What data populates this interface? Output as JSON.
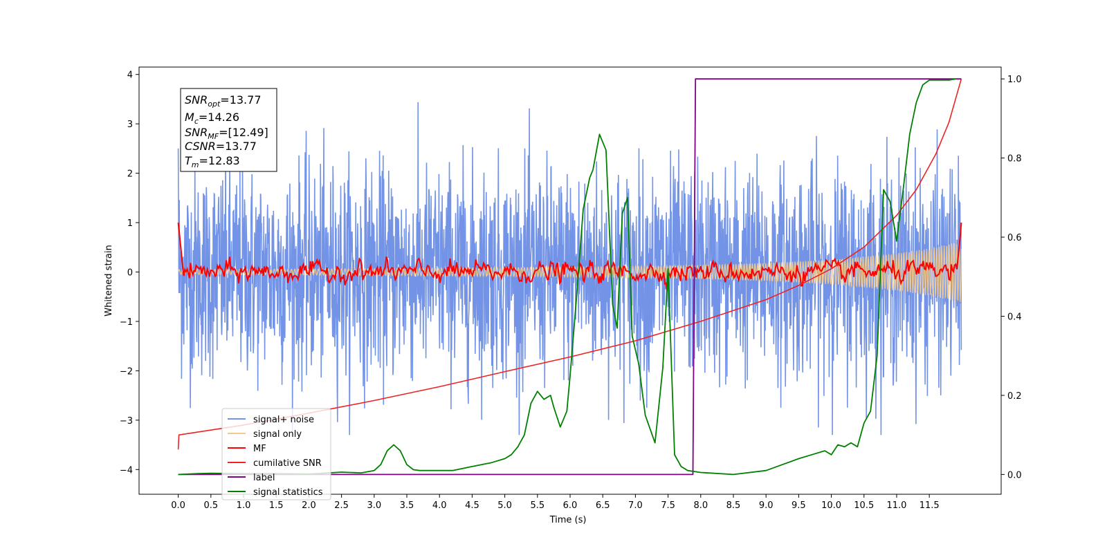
{
  "chart_data": {
    "type": "line",
    "xlabel": "Time (s)",
    "ylabel": "Whitened strain",
    "xlim": [
      -0.6,
      12.6
    ],
    "ylim": [
      -4.5,
      4.15
    ],
    "y2lim": [
      -0.05,
      1.03
    ],
    "x_ticks": [
      "0.0",
      "0.5",
      "1.0",
      "1.5",
      "2.0",
      "2.5",
      "3.0",
      "3.5",
      "4.0",
      "4.5",
      "5.0",
      "5.5",
      "6.0",
      "6.5",
      "7.0",
      "7.5",
      "8.0",
      "8.5",
      "9.0",
      "9.5",
      "10.0",
      "10.5",
      "11.0",
      "11.5"
    ],
    "x_tick_values": [
      0,
      0.5,
      1,
      1.5,
      2,
      2.5,
      3,
      3.5,
      4,
      4.5,
      5,
      5.5,
      6,
      6.5,
      7,
      7.5,
      8,
      8.5,
      9,
      9.5,
      10,
      10.5,
      11,
      11.5
    ],
    "y_ticks": [
      "4",
      "3",
      "2",
      "1",
      "0",
      "−1",
      "−2",
      "−3",
      "−4"
    ],
    "y_tick_values": [
      4,
      3,
      2,
      1,
      0,
      -1,
      -2,
      -3,
      -4
    ],
    "y2_ticks": [
      "1.0",
      "0.8",
      "0.6",
      "0.4",
      "0.2",
      "0.0"
    ],
    "y2_tick_values": [
      1.0,
      0.8,
      0.6,
      0.4,
      0.2,
      0.0
    ],
    "annotation": {
      "snr_opt": "=13.77",
      "mc": "=14.26",
      "snr_mf": "=[12.49]",
      "csnr": "=13.77",
      "tm": "=12.83"
    },
    "legend": {
      "placement": "lower-left",
      "entries": [
        "signal+ noise",
        "signal only",
        "MF",
        "cumilative SNR",
        "label",
        "signal statistics"
      ]
    },
    "colors": {
      "signal_noise": "#7393e6",
      "signal_only": "#f2c98c",
      "mf": "#ff0000",
      "cumulative_snr": "#ee2222",
      "label": "#800080",
      "signal_statistics": "#008000"
    },
    "series": [
      {
        "name": "signal+ noise",
        "axis": "left",
        "description_values": "dense whitened noise, approx range -3.3 to 3.8",
        "x_range": [
          0,
          11.99
        ]
      },
      {
        "name": "signal only",
        "axis": "left",
        "x_range": [
          0,
          11.99
        ],
        "envelope": {
          "x": [
            0,
            2,
            4,
            6,
            8,
            9,
            10,
            11,
            11.5,
            11.99
          ],
          "amp": [
            0.05,
            0.06,
            0.08,
            0.1,
            0.14,
            0.18,
            0.25,
            0.38,
            0.48,
            0.62
          ]
        }
      },
      {
        "name": "MF",
        "axis": "left",
        "x_range": [
          0,
          11.99
        ],
        "start_value": 1.0,
        "end_value": 1.0
      },
      {
        "name": "cumilative SNR",
        "axis": "right",
        "x": [
          0,
          0.01,
          1,
          2,
          3,
          4,
          5,
          6,
          7,
          8,
          9,
          9.5,
          10,
          10.5,
          11,
          11.3,
          11.6,
          11.8,
          11.99
        ],
        "values": [
          0.063,
          0.1,
          0.125,
          0.155,
          0.187,
          0.222,
          0.26,
          0.297,
          0.338,
          0.387,
          0.442,
          0.478,
          0.52,
          0.575,
          0.655,
          0.72,
          0.81,
          0.89,
          1.0
        ]
      },
      {
        "name": "label",
        "axis": "right",
        "x": [
          0,
          7.88,
          7.92,
          11.99
        ],
        "values": [
          0,
          0,
          1,
          1
        ]
      },
      {
        "name": "signal statistics",
        "axis": "right",
        "x": [
          0,
          0.3,
          0.5,
          1.0,
          1.5,
          2.0,
          2.5,
          2.8,
          3.0,
          3.1,
          3.2,
          3.3,
          3.4,
          3.5,
          3.6,
          3.7,
          4.0,
          4.2,
          4.5,
          4.8,
          5.0,
          5.1,
          5.2,
          5.3,
          5.4,
          5.5,
          5.6,
          5.7,
          5.75,
          5.85,
          5.95,
          6.0,
          6.1,
          6.2,
          6.3,
          6.35,
          6.45,
          6.55,
          6.65,
          6.72,
          6.8,
          6.88,
          6.95,
          7.05,
          7.15,
          7.3,
          7.42,
          7.5,
          7.6,
          7.7,
          7.8,
          8.0,
          8.5,
          9.0,
          9.5,
          9.7,
          9.9,
          10.0,
          10.1,
          10.2,
          10.3,
          10.4,
          10.5,
          10.6,
          10.7,
          10.8,
          10.9,
          11.0,
          11.1,
          11.2,
          11.3,
          11.4,
          11.5,
          11.6,
          11.7,
          11.8,
          11.9
        ],
        "values": [
          0.0,
          0.002,
          0.003,
          0.002,
          0.002,
          0.001,
          0.006,
          0.004,
          0.01,
          0.025,
          0.06,
          0.075,
          0.06,
          0.025,
          0.012,
          0.01,
          0.01,
          0.01,
          0.02,
          0.03,
          0.04,
          0.05,
          0.07,
          0.1,
          0.18,
          0.21,
          0.19,
          0.2,
          0.17,
          0.12,
          0.16,
          0.25,
          0.45,
          0.67,
          0.75,
          0.77,
          0.86,
          0.82,
          0.43,
          0.37,
          0.66,
          0.7,
          0.35,
          0.28,
          0.15,
          0.08,
          0.27,
          0.52,
          0.05,
          0.02,
          0.01,
          0.005,
          0.0,
          0.01,
          0.04,
          0.05,
          0.06,
          0.05,
          0.075,
          0.07,
          0.08,
          0.07,
          0.13,
          0.16,
          0.3,
          0.72,
          0.69,
          0.59,
          0.72,
          0.86,
          0.94,
          0.985,
          0.997,
          0.997,
          0.997,
          0.997,
          1.0
        ]
      }
    ]
  }
}
